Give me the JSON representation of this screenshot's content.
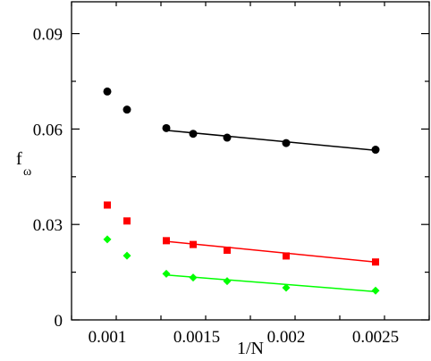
{
  "chart_data": {
    "type": "scatter",
    "xlabel": "1/N",
    "ylabel": "f",
    "ylabel_subscript": "ω",
    "xlim": [
      0.0008,
      0.0028
    ],
    "ylim": [
      0,
      0.1
    ],
    "x_ticks": [
      0.001,
      0.0015,
      0.002,
      0.0025
    ],
    "x_tick_labels": [
      "0.001",
      "0.0015",
      "0.002",
      "0.0025"
    ],
    "y_ticks": [
      0,
      0.03,
      0.06,
      0.09
    ],
    "y_tick_labels": [
      "0",
      "0.03",
      "0.06",
      "0.09"
    ],
    "grid": false,
    "series": [
      {
        "marker": "circle",
        "color": "#000000",
        "x": [
          0.001,
          0.00111,
          0.00133,
          0.00148,
          0.00167,
          0.002,
          0.0025
        ],
        "y": [
          0.0718,
          0.0661,
          0.0603,
          0.0585,
          0.0573,
          0.0556,
          0.0535
        ],
        "fit": {
          "x": [
            0.00133,
            0.0025
          ],
          "y": [
            0.0596,
            0.0533
          ]
        }
      },
      {
        "marker": "square",
        "color": "#ff0000",
        "x": [
          0.001,
          0.00111,
          0.00133,
          0.00148,
          0.00167,
          0.002,
          0.0025
        ],
        "y": [
          0.0361,
          0.0311,
          0.0249,
          0.0237,
          0.0219,
          0.0201,
          0.0182
        ],
        "fit": {
          "x": [
            0.00133,
            0.0025
          ],
          "y": [
            0.0247,
            0.0182
          ]
        }
      },
      {
        "marker": "diamond",
        "color": "#00ff00",
        "x": [
          0.001,
          0.00111,
          0.00133,
          0.00148,
          0.00167,
          0.002,
          0.0025
        ],
        "y": [
          0.0253,
          0.0202,
          0.0145,
          0.0133,
          0.0122,
          0.0101,
          0.0092
        ],
        "fit": {
          "x": [
            0.00133,
            0.0025
          ],
          "y": [
            0.0141,
            0.0089
          ]
        }
      }
    ]
  }
}
